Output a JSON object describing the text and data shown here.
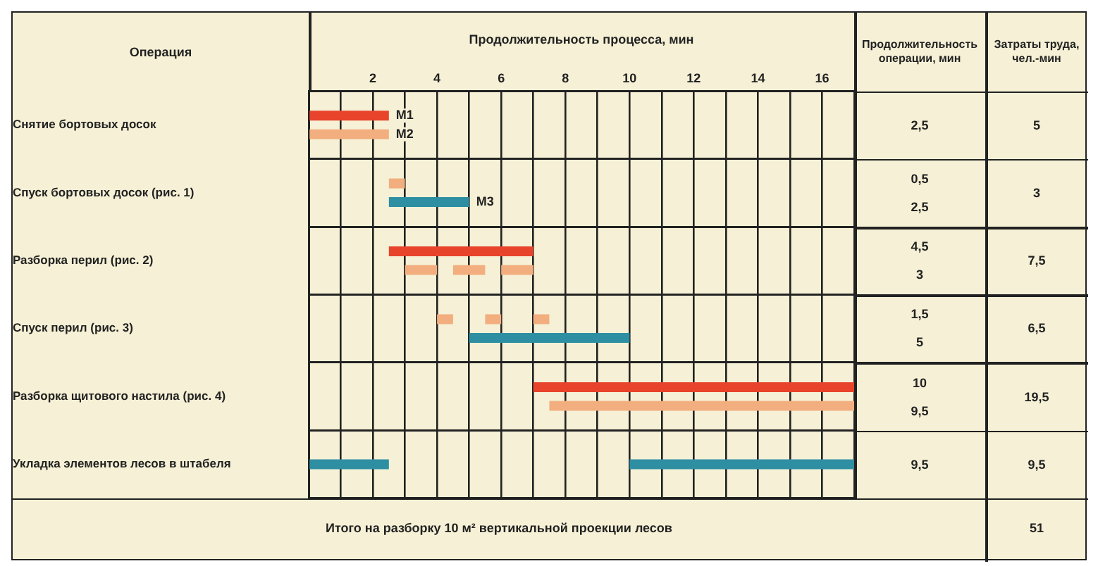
{
  "chart_data": {
    "type": "bar",
    "orientation": "horizontal",
    "xlabel": "Продолжительность процесса, мин",
    "ylabel": "Операция",
    "categories": [
      "Снятие бортовых досок",
      "Спуск бортовых досок (рис. 1)",
      "Разборка перил (рис. 2)",
      "Спуск перил (рис. 3)",
      "Разборка щитового настила (рис. 4)",
      "Укладка элементов лесов в штабеля"
    ],
    "series": [
      {
        "name": "М1",
        "color": "#e8432b",
        "values": [
          2.5,
          null,
          4.5,
          null,
          10,
          null
        ],
        "base": [
          0,
          null,
          2.5,
          null,
          7,
          null
        ]
      },
      {
        "name": "М2",
        "color": "#f2ae7e",
        "values": [
          2.5,
          0.5,
          1,
          0.5,
          9.5,
          null
        ],
        "base": [
          0,
          2.5,
          3,
          4,
          7.5,
          null
        ]
      },
      {
        "color": "#f2ae7e",
        "values": [
          null,
          null,
          1,
          0.5,
          null,
          null
        ],
        "base": [
          null,
          null,
          4.5,
          5.5,
          null,
          null
        ]
      },
      {
        "color": "#f2ae7e",
        "values": [
          null,
          null,
          1,
          0.5,
          null,
          null
        ],
        "base": [
          null,
          null,
          6,
          7,
          null,
          null
        ]
      },
      {
        "name": "М3",
        "color": "#2e8fa3",
        "values": [
          null,
          2.5,
          null,
          5,
          null,
          2.5
        ],
        "base": [
          null,
          2.5,
          null,
          5,
          null,
          0
        ]
      },
      {
        "color": "#2e8fa3",
        "values": [
          null,
          null,
          null,
          null,
          null,
          7
        ],
        "base": [
          null,
          null,
          null,
          null,
          null,
          10
        ]
      }
    ],
    "xlim": [
      0,
      17
    ],
    "xticks": [
      {
        "value": 0,
        "label": null
      },
      {
        "value": 1,
        "label": null
      },
      2,
      {
        "value": 3,
        "label": null
      },
      4,
      {
        "value": 5,
        "label": null
      },
      6,
      {
        "value": 7,
        "label": null
      },
      8,
      {
        "value": 9,
        "label": null
      },
      10,
      {
        "value": 11,
        "label": null
      },
      12,
      {
        "value": 13,
        "label": null
      },
      14,
      {
        "value": 15,
        "label": null
      },
      16,
      {
        "value": 17,
        "label": null
      }
    ],
    "grid": true,
    "legend": false,
    "annotations": [
      "Продолжительность операции, мин",
      "Затраты труда, чел.-мин",
      "2,5",
      "5",
      "0,5\n2,5",
      "3",
      "4,5\n3",
      "7,5",
      "1,5\n5",
      "6,5",
      "10\n9,5",
      "19,5",
      "9,5",
      "9,5",
      "Итого на разборку 10 м² вертикальной проекции лесов",
      "51"
    ]
  }
}
